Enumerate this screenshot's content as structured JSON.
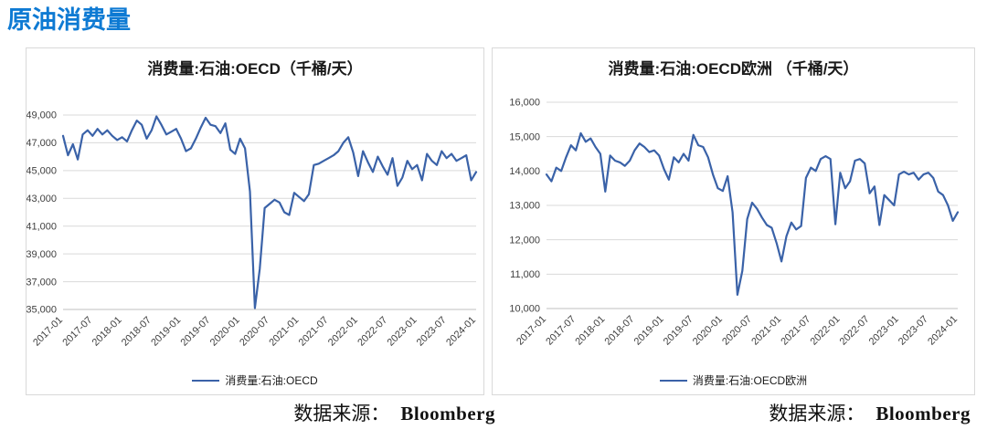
{
  "page": {
    "title": "原油消费量"
  },
  "colors": {
    "title_blue": "#0e7ad3",
    "line_blue": "#3a62a8",
    "grid_gray": "#d9d9d9",
    "axis_gray": "#bfbfbf",
    "panel_border": "#d9d9d9"
  },
  "source_note": {
    "label": "数据来源：",
    "value": "Bloomberg"
  },
  "chart_data": [
    {
      "type": "line",
      "title": "消费量:石油:OECD（千桶/天）",
      "legend": "消费量:石油:OECD",
      "xlabel": "",
      "ylabel": "",
      "grid": true,
      "legend_position": "bottom",
      "x_frequency": "monthly",
      "x_range": [
        "2017-01",
        "2024-01"
      ],
      "xticks": [
        "2017-01",
        "2017-07",
        "2018-01",
        "2018-07",
        "2019-01",
        "2019-07",
        "2020-01",
        "2020-07",
        "2021-01",
        "2021-07",
        "2022-01",
        "2022-07",
        "2023-01",
        "2023-07",
        "2024-01"
      ],
      "ylim": [
        35000,
        49000
      ],
      "ytick_step": 2000,
      "values": [
        47500,
        46100,
        46900,
        45800,
        47600,
        47900,
        47500,
        48000,
        47600,
        47900,
        47500,
        47200,
        47400,
        47100,
        47900,
        48600,
        48300,
        47300,
        47900,
        48900,
        48300,
        47600,
        47800,
        48000,
        47300,
        46400,
        46600,
        47300,
        48100,
        48800,
        48300,
        48200,
        47700,
        48400,
        46500,
        46200,
        47300,
        46600,
        43500,
        35100,
        37900,
        42300,
        42600,
        42900,
        42700,
        42000,
        41800,
        43400,
        43100,
        42800,
        43300,
        45400,
        45500,
        45700,
        45900,
        46100,
        46400,
        47000,
        47400,
        46300,
        44600,
        46400,
        45600,
        44900,
        46000,
        45300,
        44700,
        45900,
        43900,
        44500,
        45700,
        45100,
        45400,
        44300,
        46200,
        45700,
        45400,
        46400,
        45900,
        46200,
        45700,
        45900,
        46100,
        44300,
        44900
      ]
    },
    {
      "type": "line",
      "title": "消费量:石油:OECD欧洲 （千桶/天）",
      "legend": "消费量:石油:OECD欧洲",
      "xlabel": "",
      "ylabel": "",
      "grid": true,
      "legend_position": "bottom",
      "x_frequency": "monthly",
      "x_range": [
        "2017-01",
        "2024-01"
      ],
      "xticks": [
        "2017-01",
        "2017-07",
        "2018-01",
        "2018-07",
        "2019-01",
        "2019-07",
        "2020-01",
        "2020-07",
        "2021-01",
        "2021-07",
        "2022-01",
        "2022-07",
        "2023-01",
        "2023-07",
        "2024-01"
      ],
      "ylim": [
        10000,
        16000
      ],
      "ytick_step": 1000,
      "values": [
        13900,
        13700,
        14100,
        14000,
        14400,
        14750,
        14600,
        15100,
        14850,
        14950,
        14700,
        14500,
        13400,
        14450,
        14300,
        14250,
        14150,
        14300,
        14600,
        14800,
        14700,
        14550,
        14600,
        14450,
        14050,
        13750,
        14400,
        14250,
        14500,
        14300,
        15050,
        14750,
        14700,
        14400,
        13900,
        13500,
        13420,
        13850,
        12800,
        10400,
        11100,
        12600,
        13080,
        12900,
        12650,
        12430,
        12350,
        11900,
        11370,
        12100,
        12500,
        12300,
        12400,
        13800,
        14100,
        14000,
        14350,
        14430,
        14350,
        12450,
        13950,
        13500,
        13700,
        14300,
        14350,
        14220,
        13350,
        13550,
        12430,
        13300,
        13150,
        13000,
        13900,
        13980,
        13900,
        13950,
        13750,
        13900,
        13950,
        13800,
        13400,
        13300,
        13000,
        12550,
        12800
      ]
    }
  ]
}
